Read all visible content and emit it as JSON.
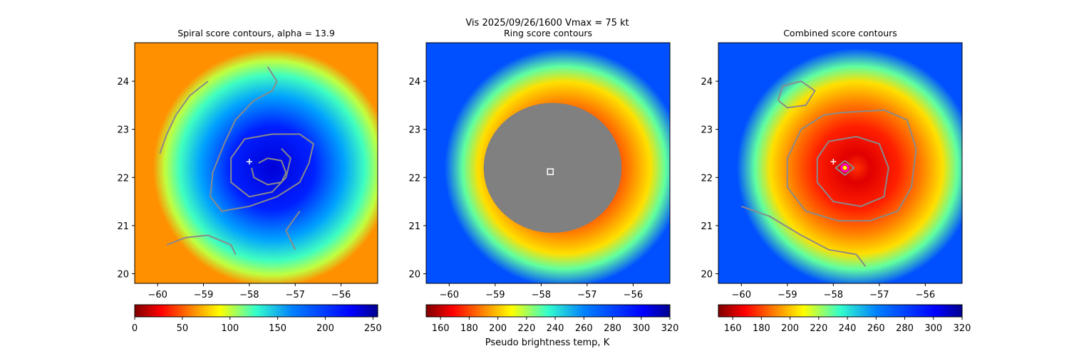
{
  "figure": {
    "suptitle": "Vis  2025/09/26/1600    Vmax = 75 kt",
    "colorbar_label": "Pseudo brightness temp, K"
  },
  "chart_data": [
    {
      "type": "heatmap",
      "title": "Spiral score contours, alpha = 13.9",
      "xlim": [
        -60.5,
        -55.2
      ],
      "ylim": [
        19.8,
        24.8
      ],
      "xticks": [
        -60,
        -59,
        -58,
        -57,
        -56
      ],
      "xticklabels": [
        "−60",
        "−59",
        "−58",
        "−57",
        "−56"
      ],
      "yticks": [
        20,
        21,
        22,
        23,
        24
      ],
      "yticklabels": [
        "20",
        "21",
        "22",
        "23",
        "24"
      ],
      "colormap": "jet_r",
      "colorbar_range": [
        0,
        255
      ],
      "colorbar_ticks": [
        0,
        50,
        100,
        150,
        200,
        250
      ],
      "colorbar_ticklabels": [
        "0",
        "50",
        "100",
        "150",
        "200",
        "250"
      ],
      "center": {
        "x": -57.5,
        "y": 22.2,
        "field_radius": 2.6
      },
      "marker": {
        "type": "plus",
        "x": -58.0,
        "y": 22.33,
        "color": "#ffffff"
      },
      "contours": [
        {
          "name": "outer-band",
          "points": [
            [
              -58.9,
              24.0
            ],
            [
              -59.3,
              23.7
            ],
            [
              -59.6,
              23.3
            ],
            [
              -59.8,
              22.9
            ],
            [
              -59.95,
              22.5
            ]
          ]
        },
        {
          "name": "middle-ring",
          "points": [
            [
              -57.6,
              24.3
            ],
            [
              -57.4,
              24.0
            ],
            [
              -57.5,
              23.8
            ],
            [
              -57.9,
              23.6
            ],
            [
              -58.3,
              23.2
            ],
            [
              -58.55,
              22.7
            ],
            [
              -58.8,
              22.1
            ],
            [
              -58.85,
              21.6
            ],
            [
              -58.6,
              21.3
            ],
            [
              -58.0,
              21.4
            ],
            [
              -57.4,
              21.6
            ],
            [
              -56.9,
              21.9
            ],
            [
              -56.7,
              22.3
            ],
            [
              -56.6,
              22.7
            ],
            [
              -56.9,
              22.9
            ],
            [
              -57.5,
              22.9
            ],
            [
              -58.1,
              22.8
            ],
            [
              -58.4,
              22.4
            ],
            [
              -58.4,
              21.9
            ],
            [
              -58.0,
              21.6
            ],
            [
              -57.5,
              21.7
            ],
            [
              -57.2,
              22.0
            ],
            [
              -57.1,
              22.4
            ],
            [
              -57.3,
              22.6
            ]
          ]
        },
        {
          "name": "inner-ring",
          "points": [
            [
              -57.8,
              22.3
            ],
            [
              -57.6,
              22.4
            ],
            [
              -57.3,
              22.35
            ],
            [
              -57.2,
              22.1
            ],
            [
              -57.3,
              21.9
            ],
            [
              -57.6,
              21.85
            ],
            [
              -57.9,
              22.0
            ],
            [
              -57.95,
              22.2
            ]
          ]
        },
        {
          "name": "lower-band",
          "points": [
            [
              -59.8,
              20.6
            ],
            [
              -59.4,
              20.75
            ],
            [
              -58.9,
              20.8
            ],
            [
              -58.4,
              20.6
            ],
            [
              -58.3,
              20.4
            ]
          ]
        },
        {
          "name": "lower-right-arm",
          "points": [
            [
              -56.9,
              21.3
            ],
            [
              -57.2,
              20.9
            ],
            [
              -57.0,
              20.5
            ]
          ]
        }
      ]
    },
    {
      "type": "heatmap",
      "title": "Ring score contours",
      "xlim": [
        -60.5,
        -55.2
      ],
      "ylim": [
        19.8,
        24.8
      ],
      "xticks": [
        -60,
        -59,
        -58,
        -57,
        -56
      ],
      "xticklabels": [
        "−60",
        "−59",
        "−58",
        "−57",
        "−56"
      ],
      "yticks": [
        20,
        21,
        22,
        23,
        24
      ],
      "yticklabels": [
        "20",
        "21",
        "22",
        "23",
        "24"
      ],
      "colormap": "jet_r",
      "colorbar_range": [
        150,
        320
      ],
      "colorbar_ticks": [
        160,
        180,
        200,
        220,
        240,
        260,
        280,
        300,
        320
      ],
      "colorbar_ticklabels": [
        "160",
        "180",
        "200",
        "220",
        "240",
        "260",
        "280",
        "300",
        "320"
      ],
      "center": {
        "x": -57.5,
        "y": 22.2,
        "field_radius": 2.6
      },
      "marker": {
        "type": "square",
        "x": -57.8,
        "y": 22.12,
        "color": "#ffffff"
      },
      "filled_region": {
        "color": "#808080",
        "cx": -57.75,
        "cy": 22.2,
        "rx": 1.5,
        "ry": 1.35
      }
    },
    {
      "type": "heatmap",
      "title": "Combined score contours",
      "xlim": [
        -60.5,
        -55.2
      ],
      "ylim": [
        19.8,
        24.8
      ],
      "xticks": [
        -60,
        -59,
        -58,
        -57,
        -56
      ],
      "xticklabels": [
        "−60",
        "−59",
        "−58",
        "−57",
        "−56"
      ],
      "yticks": [
        20,
        21,
        22,
        23,
        24
      ],
      "yticklabels": [
        "20",
        "21",
        "22",
        "23",
        "24"
      ],
      "colormap": "jet_r",
      "colorbar_range": [
        150,
        320
      ],
      "colorbar_ticks": [
        160,
        180,
        200,
        220,
        240,
        260,
        280,
        300,
        320
      ],
      "colorbar_ticklabels": [
        "160",
        "180",
        "200",
        "220",
        "240",
        "260",
        "280",
        "300",
        "320"
      ],
      "center": {
        "x": -57.5,
        "y": 22.2,
        "field_radius": 2.6
      },
      "marker": {
        "type": "plus",
        "x": -58.0,
        "y": 22.33,
        "color": "#ffffff"
      },
      "center_dot": {
        "x": -57.75,
        "y": 22.2,
        "color": "#ff00ff",
        "inner_color": "#ffff00"
      },
      "contours": [
        {
          "name": "upper-loop",
          "points": [
            [
              -59.2,
              23.6
            ],
            [
              -59.1,
              23.9
            ],
            [
              -58.7,
              24.0
            ],
            [
              -58.4,
              23.8
            ],
            [
              -58.6,
              23.5
            ],
            [
              -59.0,
              23.45
            ],
            [
              -59.2,
              23.6
            ]
          ]
        },
        {
          "name": "outer-ring",
          "points": [
            [
              -57.8,
              23.35
            ],
            [
              -56.9,
              23.4
            ],
            [
              -56.4,
              23.2
            ],
            [
              -56.2,
              22.6
            ],
            [
              -56.3,
              21.8
            ],
            [
              -56.6,
              21.3
            ],
            [
              -57.2,
              21.1
            ],
            [
              -57.9,
              21.1
            ],
            [
              -58.6,
              21.3
            ],
            [
              -59.0,
              21.8
            ],
            [
              -59.0,
              22.4
            ],
            [
              -58.7,
              23.0
            ],
            [
              -58.2,
              23.3
            ],
            [
              -57.8,
              23.35
            ]
          ]
        },
        {
          "name": "middle-ring",
          "points": [
            [
              -57.5,
              22.85
            ],
            [
              -57.0,
              22.7
            ],
            [
              -56.8,
              22.2
            ],
            [
              -56.9,
              21.6
            ],
            [
              -57.4,
              21.4
            ],
            [
              -58.0,
              21.5
            ],
            [
              -58.35,
              21.9
            ],
            [
              -58.35,
              22.4
            ],
            [
              -58.1,
              22.75
            ],
            [
              -57.5,
              22.85
            ]
          ]
        },
        {
          "name": "eye-ring",
          "points": [
            [
              -57.75,
              22.35
            ],
            [
              -57.55,
              22.2
            ],
            [
              -57.75,
              22.05
            ],
            [
              -57.95,
              22.2
            ],
            [
              -57.75,
              22.35
            ]
          ]
        },
        {
          "name": "lower-band",
          "points": [
            [
              -60.0,
              21.4
            ],
            [
              -59.4,
              21.2
            ],
            [
              -58.7,
              20.8
            ],
            [
              -58.1,
              20.5
            ],
            [
              -57.5,
              20.4
            ],
            [
              -57.3,
              20.15
            ]
          ]
        }
      ]
    }
  ]
}
